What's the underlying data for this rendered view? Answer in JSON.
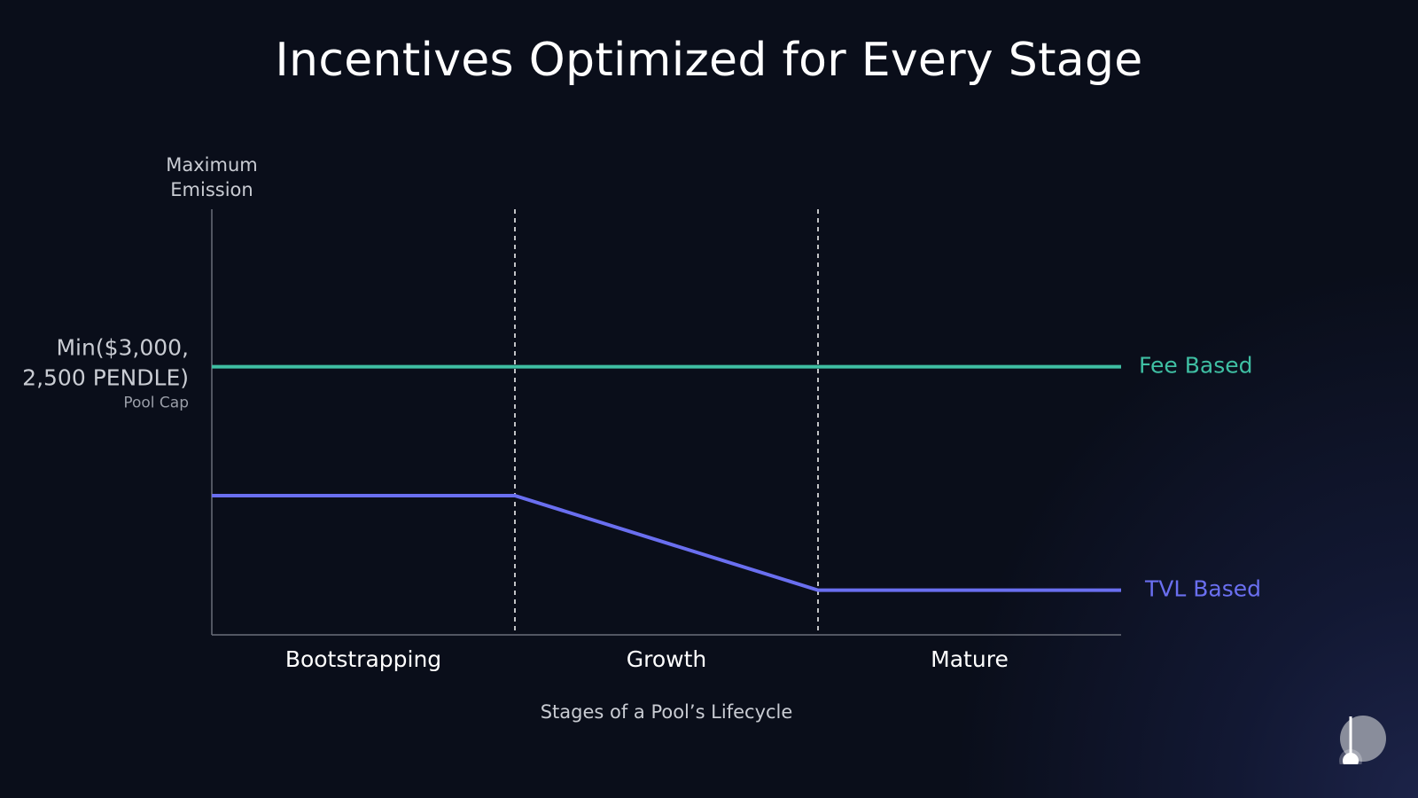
{
  "title": "Incentives Optimized for Every Stage",
  "chart_data": {
    "type": "line",
    "title": "Incentives Optimized for Every Stage",
    "ylabel": "Maximum Emission",
    "xlabel": "Stages of a Pool’s Lifecycle",
    "categories": [
      "Bootstrapping",
      "Growth",
      "Mature"
    ],
    "x_range": [
      0,
      3
    ],
    "y_range": [
      0,
      1
    ],
    "pool_cap": {
      "label_line1": "Min($3,000,",
      "label_line2": "2,500 PENDLE)",
      "sublabel": "Pool Cap",
      "value": 0.63
    },
    "stage_boundaries": [
      1,
      2
    ],
    "series": [
      {
        "name": "Fee Based",
        "color": "#3fbfa3",
        "points": [
          [
            0,
            0.63
          ],
          [
            3,
            0.63
          ]
        ]
      },
      {
        "name": "TVL Based",
        "color": "#6a6ff0",
        "points": [
          [
            0,
            0.327
          ],
          [
            1,
            0.327
          ],
          [
            2,
            0.105
          ],
          [
            3,
            0.105
          ]
        ]
      }
    ],
    "grid": false,
    "legend": "inline-right"
  },
  "colors": {
    "background": "#0a0e1a",
    "axis": "#6b6f7a",
    "text_primary": "#ffffff",
    "text_secondary": "#c9ccd3",
    "text_muted": "#9a9ea8"
  },
  "logo": {
    "icon": "pendle-logo-icon"
  }
}
